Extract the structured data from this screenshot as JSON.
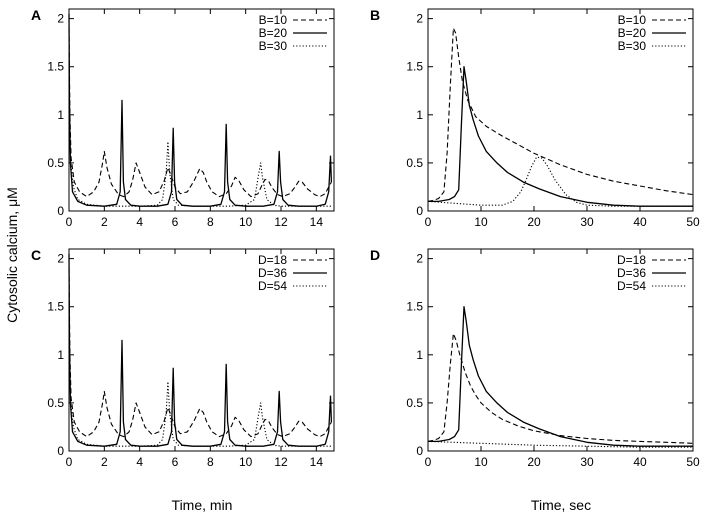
{
  "figure": {
    "ylabel": "Cytosolic calcium, μM",
    "xlabel_left": "Time, min",
    "xlabel_right": "Time, sec"
  },
  "chart_data": [
    {
      "type": "line",
      "panel": "A",
      "xlim": [
        0,
        15
      ],
      "ylim": [
        0,
        2.1
      ],
      "xticks": [
        0,
        2,
        4,
        6,
        8,
        10,
        12,
        14
      ],
      "yticks": [
        0,
        0.5,
        1,
        1.5,
        2
      ],
      "ytick_labels": [
        "0",
        "0.5",
        "1",
        "1.5",
        "2"
      ],
      "legend_position": "top-right",
      "series": [
        {
          "name": "B=10",
          "style": "dashed",
          "x": [
            0,
            0.05,
            0.12,
            0.3,
            0.6,
            1,
            1.4,
            1.7,
            1.9,
            2,
            2.15,
            2.4,
            2.8,
            3.1,
            3.4,
            3.6,
            3.8,
            4,
            4.3,
            4.7,
            5.1,
            5.4,
            5.6,
            5.8,
            6,
            6.3,
            6.7,
            7.1,
            7.4,
            7.6,
            7.8,
            8.1,
            8.5,
            8.9,
            9.2,
            9.4,
            9.6,
            9.9,
            10.3,
            10.7,
            10.9,
            11.1,
            11.3,
            11.5,
            11.8,
            12.1,
            12.5,
            12.8,
            13,
            13.2,
            13.5,
            13.9,
            14.2,
            14.5,
            14.7,
            14.85
          ],
          "y": [
            1.9,
            1.0,
            0.55,
            0.3,
            0.2,
            0.15,
            0.2,
            0.3,
            0.5,
            0.62,
            0.45,
            0.28,
            0.17,
            0.15,
            0.2,
            0.32,
            0.5,
            0.4,
            0.25,
            0.17,
            0.2,
            0.32,
            0.45,
            0.36,
            0.25,
            0.18,
            0.2,
            0.32,
            0.44,
            0.4,
            0.3,
            0.2,
            0.15,
            0.18,
            0.26,
            0.35,
            0.32,
            0.22,
            0.15,
            0.18,
            0.26,
            0.33,
            0.31,
            0.24,
            0.17,
            0.15,
            0.18,
            0.25,
            0.31,
            0.3,
            0.23,
            0.17,
            0.15,
            0.18,
            0.25,
            0.3
          ]
        },
        {
          "name": "B=20",
          "style": "solid",
          "x": [
            0,
            0.02,
            0.08,
            0.2,
            0.5,
            1,
            2,
            2.7,
            2.9,
            3,
            3.08,
            3.2,
            3.5,
            4,
            5,
            5.6,
            5.8,
            5.9,
            5.98,
            6.1,
            6.4,
            7,
            8,
            8.6,
            8.8,
            8.9,
            8.98,
            9.1,
            9.4,
            10,
            11,
            11.6,
            11.8,
            11.9,
            11.98,
            12.1,
            12.4,
            13,
            14,
            14.5,
            14.7,
            14.8,
            14.85
          ],
          "y": [
            2.05,
            1.2,
            0.5,
            0.2,
            0.1,
            0.06,
            0.05,
            0.07,
            0.2,
            1.15,
            0.3,
            0.12,
            0.06,
            0.05,
            0.05,
            0.07,
            0.2,
            0.86,
            0.3,
            0.12,
            0.06,
            0.05,
            0.05,
            0.07,
            0.2,
            0.9,
            0.3,
            0.12,
            0.06,
            0.05,
            0.05,
            0.07,
            0.2,
            0.62,
            0.3,
            0.12,
            0.06,
            0.05,
            0.05,
            0.07,
            0.2,
            0.57,
            0.3
          ]
        },
        {
          "name": "B=30",
          "style": "dotted",
          "x": [
            0,
            0.04,
            0.1,
            0.25,
            0.5,
            1,
            2,
            3,
            4,
            5,
            5.3,
            5.5,
            5.6,
            5.7,
            5.9,
            6.2,
            7,
            8,
            9,
            10,
            10.5,
            10.75,
            10.85,
            10.95,
            11.2,
            11.6,
            12,
            13,
            14,
            14.85
          ],
          "y": [
            1.5,
            0.9,
            0.5,
            0.25,
            0.12,
            0.07,
            0.05,
            0.05,
            0.05,
            0.06,
            0.12,
            0.4,
            0.72,
            0.4,
            0.12,
            0.06,
            0.05,
            0.05,
            0.05,
            0.06,
            0.12,
            0.4,
            0.5,
            0.35,
            0.12,
            0.06,
            0.05,
            0.05,
            0.05,
            0.05
          ]
        }
      ]
    },
    {
      "type": "line",
      "panel": "B",
      "xlim": [
        0,
        50
      ],
      "ylim": [
        0,
        2.1
      ],
      "xticks": [
        0,
        10,
        20,
        30,
        40,
        50
      ],
      "yticks": [
        0,
        0.5,
        1,
        1.5,
        2
      ],
      "ytick_labels": [
        "0",
        "0.5",
        "1",
        "1.5",
        "2"
      ],
      "legend_position": "top-right",
      "series": [
        {
          "name": "B=10",
          "style": "dashed",
          "x": [
            0,
            1,
            2,
            3,
            3.6,
            4.2,
            4.8,
            5.2,
            5.8,
            6.5,
            7.5,
            9,
            11,
            14,
            17,
            20,
            25,
            30,
            35,
            40,
            45,
            50
          ],
          "y": [
            0.1,
            0.11,
            0.13,
            0.2,
            0.6,
            1.3,
            1.9,
            1.85,
            1.6,
            1.35,
            1.15,
            0.98,
            0.88,
            0.78,
            0.69,
            0.6,
            0.48,
            0.38,
            0.31,
            0.26,
            0.21,
            0.17
          ]
        },
        {
          "name": "B=20",
          "style": "solid",
          "x": [
            0,
            2,
            4,
            5,
            5.8,
            6.3,
            6.8,
            7.2,
            7.8,
            8.5,
            9.5,
            11,
            13,
            15,
            18,
            21,
            25,
            30,
            35,
            40,
            45,
            50
          ],
          "y": [
            0.1,
            0.1,
            0.12,
            0.15,
            0.22,
            0.9,
            1.5,
            1.35,
            1.1,
            0.95,
            0.78,
            0.62,
            0.5,
            0.4,
            0.3,
            0.23,
            0.15,
            0.09,
            0.06,
            0.05,
            0.05,
            0.05
          ]
        },
        {
          "name": "B=30",
          "style": "dotted",
          "x": [
            0,
            5,
            10,
            14,
            16,
            17.5,
            18.5,
            19.5,
            20.5,
            21.5,
            22.5,
            24,
            26,
            28,
            30,
            35,
            40,
            45,
            50
          ],
          "y": [
            0.1,
            0.08,
            0.06,
            0.06,
            0.1,
            0.2,
            0.32,
            0.46,
            0.56,
            0.55,
            0.47,
            0.32,
            0.17,
            0.09,
            0.06,
            0.05,
            0.05,
            0.05,
            0.05
          ]
        }
      ]
    },
    {
      "type": "line",
      "panel": "C",
      "xlim": [
        0,
        15
      ],
      "ylim": [
        0,
        2.1
      ],
      "xticks": [
        0,
        2,
        4,
        6,
        8,
        10,
        12,
        14
      ],
      "yticks": [
        0,
        0.5,
        1,
        1.5,
        2
      ],
      "ytick_labels": [
        "0",
        "0.5",
        "1",
        "1.5",
        "2"
      ],
      "legend_position": "top-right",
      "series": [
        {
          "name": "D=18",
          "style": "dashed",
          "x": [
            0,
            0.05,
            0.12,
            0.3,
            0.6,
            1,
            1.4,
            1.7,
            1.9,
            2,
            2.15,
            2.4,
            2.8,
            3.1,
            3.4,
            3.6,
            3.8,
            4,
            4.3,
            4.7,
            5.1,
            5.4,
            5.6,
            5.8,
            6,
            6.3,
            6.7,
            7.1,
            7.4,
            7.6,
            7.8,
            8.1,
            8.5,
            8.9,
            9.2,
            9.4,
            9.6,
            9.9,
            10.3,
            10.7,
            10.9,
            11.1,
            11.3,
            11.5,
            11.8,
            12.1,
            12.5,
            12.8,
            13,
            13.2,
            13.5,
            13.9,
            14.2,
            14.5,
            14.7,
            14.85
          ],
          "y": [
            1.9,
            1.0,
            0.55,
            0.3,
            0.2,
            0.15,
            0.2,
            0.3,
            0.5,
            0.62,
            0.45,
            0.28,
            0.17,
            0.15,
            0.2,
            0.32,
            0.5,
            0.4,
            0.25,
            0.17,
            0.2,
            0.32,
            0.45,
            0.36,
            0.25,
            0.18,
            0.2,
            0.32,
            0.44,
            0.4,
            0.3,
            0.2,
            0.15,
            0.18,
            0.26,
            0.35,
            0.32,
            0.22,
            0.15,
            0.18,
            0.26,
            0.33,
            0.31,
            0.24,
            0.17,
            0.15,
            0.18,
            0.25,
            0.31,
            0.3,
            0.23,
            0.17,
            0.15,
            0.18,
            0.25,
            0.3
          ]
        },
        {
          "name": "D=36",
          "style": "solid",
          "x": [
            0,
            0.02,
            0.08,
            0.2,
            0.5,
            1,
            2,
            2.7,
            2.9,
            3,
            3.08,
            3.2,
            3.5,
            4,
            5,
            5.6,
            5.8,
            5.9,
            5.98,
            6.1,
            6.4,
            7,
            8,
            8.6,
            8.8,
            8.9,
            8.98,
            9.1,
            9.4,
            10,
            11,
            11.6,
            11.8,
            11.9,
            11.98,
            12.1,
            12.4,
            13,
            14,
            14.5,
            14.7,
            14.8,
            14.85
          ],
          "y": [
            2.05,
            1.2,
            0.5,
            0.2,
            0.1,
            0.06,
            0.05,
            0.07,
            0.2,
            1.15,
            0.3,
            0.12,
            0.06,
            0.05,
            0.05,
            0.07,
            0.2,
            0.86,
            0.3,
            0.12,
            0.06,
            0.05,
            0.05,
            0.07,
            0.2,
            0.9,
            0.3,
            0.12,
            0.06,
            0.05,
            0.05,
            0.07,
            0.2,
            0.62,
            0.3,
            0.12,
            0.06,
            0.05,
            0.05,
            0.07,
            0.2,
            0.57,
            0.3
          ]
        },
        {
          "name": "D=54",
          "style": "dotted",
          "x": [
            0,
            0.04,
            0.1,
            0.25,
            0.5,
            1,
            2,
            3,
            4,
            5,
            5.3,
            5.5,
            5.6,
            5.7,
            5.9,
            6.2,
            7,
            8,
            9,
            10,
            10.5,
            10.75,
            10.85,
            10.95,
            11.2,
            11.6,
            12,
            13,
            14,
            14.85
          ],
          "y": [
            1.5,
            0.9,
            0.5,
            0.25,
            0.12,
            0.07,
            0.05,
            0.05,
            0.05,
            0.06,
            0.12,
            0.4,
            0.72,
            0.4,
            0.12,
            0.06,
            0.05,
            0.05,
            0.05,
            0.06,
            0.12,
            0.4,
            0.5,
            0.35,
            0.12,
            0.06,
            0.05,
            0.05,
            0.05,
            0.05
          ]
        }
      ]
    },
    {
      "type": "line",
      "panel": "D",
      "xlim": [
        0,
        50
      ],
      "ylim": [
        0,
        2.1
      ],
      "xticks": [
        0,
        10,
        20,
        30,
        40,
        50
      ],
      "yticks": [
        0,
        0.5,
        1,
        1.5,
        2
      ],
      "ytick_labels": [
        "0",
        "0.5",
        "1",
        "1.5",
        "2"
      ],
      "legend_position": "top-right",
      "series": [
        {
          "name": "D=18",
          "style": "dashed",
          "x": [
            0,
            1,
            2,
            3,
            3.6,
            4.2,
            4.8,
            5.3,
            6,
            7,
            8,
            9,
            10,
            12,
            14,
            17,
            20,
            25,
            30,
            35,
            40,
            45,
            50
          ],
          "y": [
            0.1,
            0.11,
            0.13,
            0.2,
            0.5,
            0.9,
            1.22,
            1.15,
            1.0,
            0.82,
            0.68,
            0.58,
            0.5,
            0.4,
            0.33,
            0.26,
            0.21,
            0.16,
            0.13,
            0.11,
            0.1,
            0.09,
            0.08
          ]
        },
        {
          "name": "D=36",
          "style": "solid",
          "x": [
            0,
            2,
            4,
            5,
            5.8,
            6.3,
            6.8,
            7.2,
            7.8,
            8.5,
            9.5,
            11,
            13,
            15,
            18,
            21,
            25,
            30,
            35,
            40,
            45,
            50
          ],
          "y": [
            0.1,
            0.1,
            0.12,
            0.15,
            0.22,
            0.9,
            1.5,
            1.35,
            1.1,
            0.95,
            0.78,
            0.62,
            0.5,
            0.4,
            0.3,
            0.23,
            0.15,
            0.09,
            0.06,
            0.05,
            0.05,
            0.05
          ]
        },
        {
          "name": "D=54",
          "style": "dotted",
          "x": [
            0,
            10,
            20,
            30,
            40,
            50
          ],
          "y": [
            0.1,
            0.08,
            0.06,
            0.05,
            0.04,
            0.04
          ]
        }
      ]
    }
  ]
}
